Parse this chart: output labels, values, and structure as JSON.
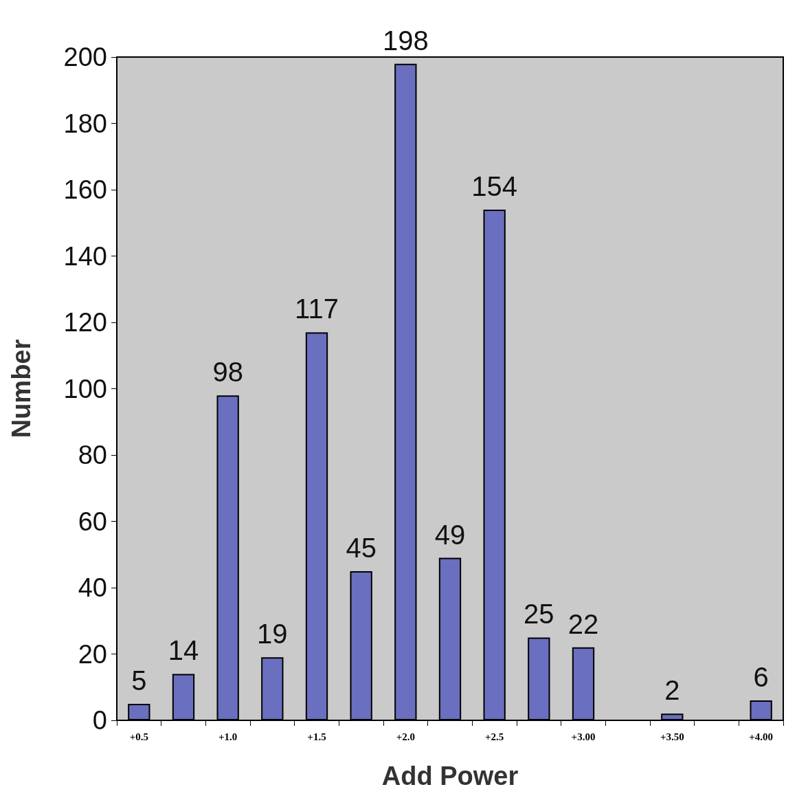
{
  "chart_data": {
    "type": "bar",
    "xlabel": "Add Power",
    "ylabel": "Number",
    "categories": [
      "+0.5",
      null,
      "+1.0",
      null,
      "+1.5",
      null,
      "+2.0",
      null,
      "+2.5",
      null,
      "+3.00",
      null,
      "+3.50",
      null,
      "+4.00"
    ],
    "values": [
      5,
      14,
      98,
      19,
      117,
      45,
      198,
      49,
      154,
      25,
      22,
      null,
      2,
      null,
      6
    ],
    "color": "#6a6fc0",
    "ylim": [
      0,
      200
    ],
    "yticks": [
      0,
      20,
      40,
      60,
      80,
      100,
      120,
      140,
      160,
      180,
      200
    ],
    "grid": false,
    "data_labels": true
  }
}
